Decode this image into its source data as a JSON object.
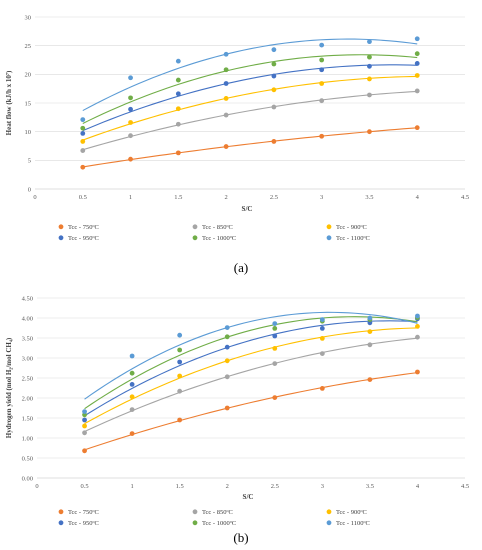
{
  "chart_data": [
    {
      "panel": "(a)",
      "type": "scatter",
      "xlabel": "S/C",
      "ylabel": "Heat flow (kJ/h x 10⁷)",
      "xlim": [
        0,
        4.5
      ],
      "ylim": [
        0,
        30
      ],
      "x_ticks": [
        0,
        0.5,
        1,
        1.5,
        2,
        2.5,
        3,
        3.5,
        4,
        4.5
      ],
      "y_ticks": [
        0,
        5,
        10,
        15,
        20,
        25,
        30
      ],
      "grid": "horizontal",
      "legend_position": "bottom",
      "trendline": "quadratic",
      "x": [
        0.5,
        1,
        1.5,
        2,
        2.5,
        3,
        3.5,
        4
      ],
      "series": [
        {
          "name": "Tcc - 750ºC",
          "color": "#ED7D31",
          "values": [
            3.8,
            5.2,
            6.3,
            7.4,
            8.3,
            9.2,
            10.0,
            10.7
          ]
        },
        {
          "name": "Tcc - 850ºC",
          "color": "#A5A5A5",
          "values": [
            6.7,
            9.3,
            11.3,
            12.9,
            14.3,
            15.4,
            16.4,
            17.1
          ]
        },
        {
          "name": "Tcc - 900ºC",
          "color": "#FFC000",
          "values": [
            8.3,
            11.6,
            14.0,
            15.8,
            17.3,
            18.4,
            19.2,
            19.8
          ]
        },
        {
          "name": "Tcc - 950ºC",
          "color": "#4472C4",
          "values": [
            9.7,
            13.9,
            16.6,
            18.4,
            19.7,
            20.8,
            21.4,
            21.9
          ]
        },
        {
          "name": "Tcc - 1000ºC",
          "color": "#70AD47",
          "values": [
            10.6,
            15.9,
            19.0,
            20.8,
            21.8,
            22.5,
            23.0,
            23.6
          ]
        },
        {
          "name": "Tcc - 1100ºC",
          "color": "#5B9BD5",
          "values": [
            12.1,
            19.4,
            22.3,
            23.5,
            24.3,
            25.1,
            25.7,
            26.2
          ]
        }
      ]
    },
    {
      "panel": "(b)",
      "type": "scatter",
      "xlabel": "S/C",
      "ylabel": "Hydrogen yield (mol H₂/mol CH₄)",
      "xlim": [
        0,
        4.5
      ],
      "ylim": [
        0,
        4.5
      ],
      "x_ticks": [
        0,
        0.5,
        1,
        1.5,
        2,
        2.5,
        3,
        3.5,
        4,
        4.5
      ],
      "y_ticks": [
        "0.00",
        "0.50",
        "1.00",
        "1.50",
        "2.00",
        "2.50",
        "3.00",
        "3.50",
        "4.00",
        "4.50"
      ],
      "grid": "horizontal",
      "legend_position": "bottom",
      "trendline": "quadratic",
      "x": [
        0.5,
        1,
        1.5,
        2,
        2.5,
        3,
        3.5,
        4
      ],
      "series": [
        {
          "name": "Tcc - 750ºC",
          "color": "#ED7D31",
          "values": [
            0.68,
            1.11,
            1.45,
            1.75,
            2.01,
            2.24,
            2.46,
            2.65
          ]
        },
        {
          "name": "Tcc - 850ºC",
          "color": "#A5A5A5",
          "values": [
            1.13,
            1.71,
            2.17,
            2.53,
            2.86,
            3.11,
            3.33,
            3.52
          ]
        },
        {
          "name": "Tcc - 900ºC",
          "color": "#FFC000",
          "values": [
            1.3,
            2.03,
            2.55,
            2.93,
            3.24,
            3.49,
            3.66,
            3.79
          ]
        },
        {
          "name": "Tcc - 950ºC",
          "color": "#4472C4",
          "values": [
            1.45,
            2.34,
            2.9,
            3.27,
            3.55,
            3.74,
            3.88,
            3.98
          ]
        },
        {
          "name": "Tcc - 1000ºC",
          "color": "#70AD47",
          "values": [
            1.58,
            2.62,
            3.2,
            3.53,
            3.74,
            3.92,
            3.96,
            4.01
          ]
        },
        {
          "name": "Tcc - 1100ºC",
          "color": "#5B9BD5",
          "values": [
            1.66,
            3.05,
            3.57,
            3.76,
            3.86,
            3.96,
            4.0,
            4.05
          ]
        }
      ]
    }
  ]
}
